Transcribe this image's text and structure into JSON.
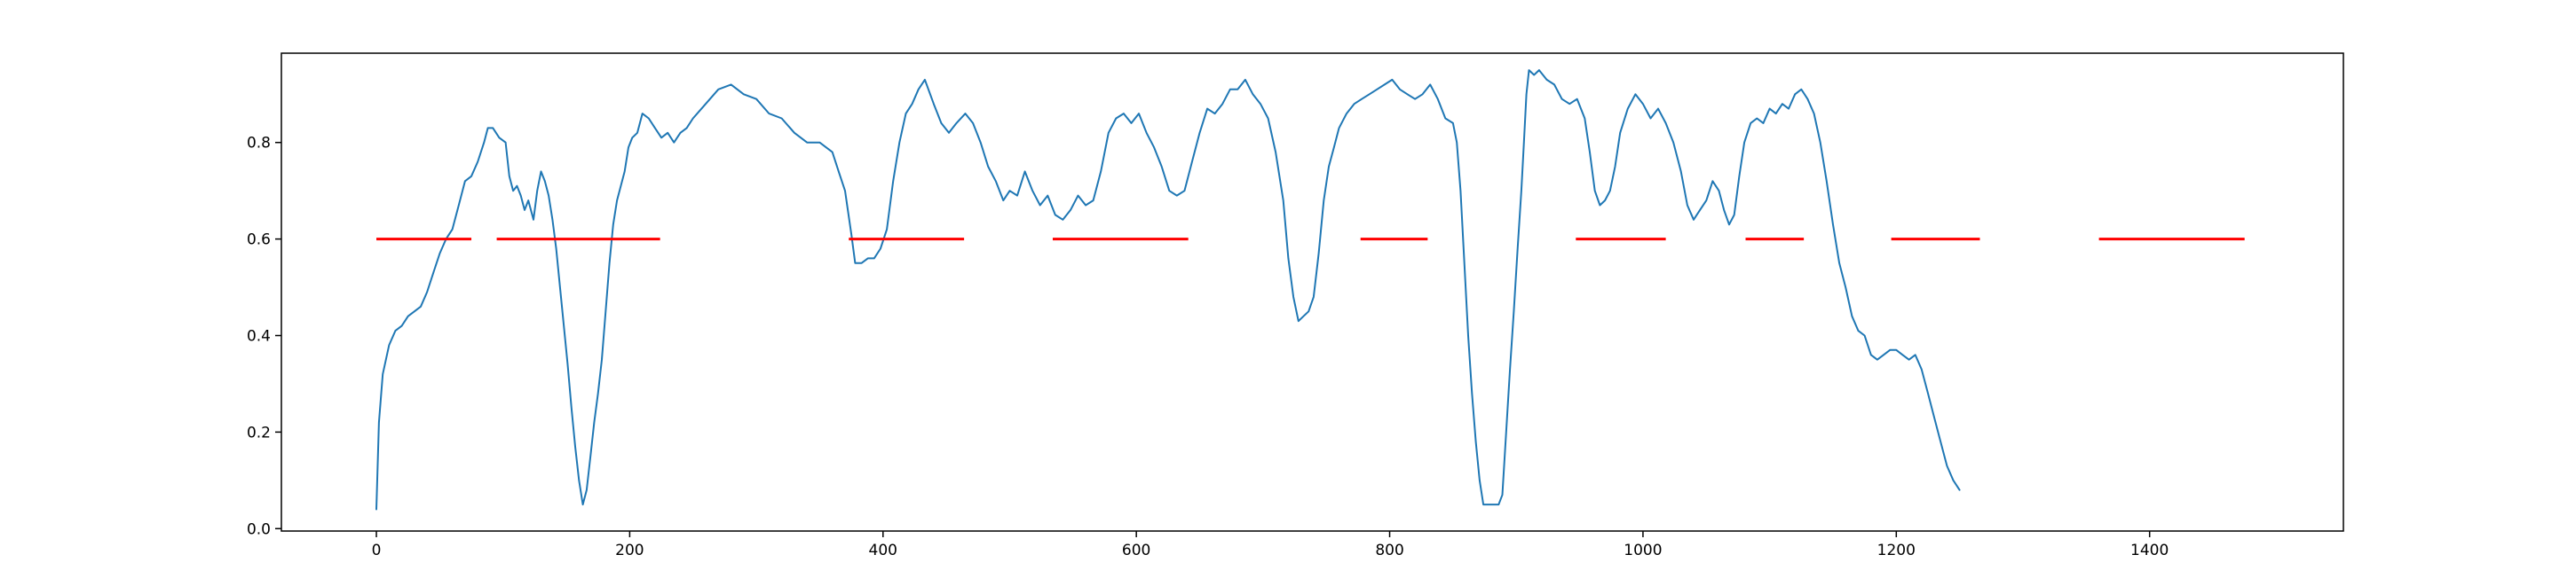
{
  "chart_data": {
    "type": "line",
    "title": "",
    "xlabel": "",
    "ylabel": "",
    "xlim": [
      -75,
      1553
    ],
    "ylim": [
      -0.005,
      0.985
    ],
    "grid": false,
    "legend": "none",
    "xticks": [
      0,
      200,
      400,
      600,
      800,
      1000,
      1200,
      1400
    ],
    "yticks": [
      0.0,
      0.2,
      0.4,
      0.6,
      0.8
    ],
    "xtick_labels": [
      "0",
      "200",
      "400",
      "600",
      "800",
      "1000",
      "1200",
      "1400"
    ],
    "ytick_labels": [
      "0.0",
      "0.2",
      "0.4",
      "0.6",
      "0.8"
    ],
    "colors": {
      "series": "#1f77b4",
      "threshold": "#ff0000",
      "axes": "#000000"
    },
    "series": [
      {
        "color": "#1f77b4",
        "points": [
          [
            0,
            0.04
          ],
          [
            2,
            0.22
          ],
          [
            5,
            0.32
          ],
          [
            10,
            0.38
          ],
          [
            15,
            0.41
          ],
          [
            20,
            0.42
          ],
          [
            25,
            0.44
          ],
          [
            30,
            0.45
          ],
          [
            35,
            0.46
          ],
          [
            40,
            0.49
          ],
          [
            45,
            0.53
          ],
          [
            50,
            0.57
          ],
          [
            55,
            0.6
          ],
          [
            60,
            0.62
          ],
          [
            65,
            0.67
          ],
          [
            70,
            0.72
          ],
          [
            75,
            0.73
          ],
          [
            80,
            0.76
          ],
          [
            85,
            0.8
          ],
          [
            88,
            0.83
          ],
          [
            92,
            0.83
          ],
          [
            97,
            0.81
          ],
          [
            102,
            0.8
          ],
          [
            105,
            0.73
          ],
          [
            108,
            0.7
          ],
          [
            111,
            0.71
          ],
          [
            114,
            0.69
          ],
          [
            117,
            0.66
          ],
          [
            120,
            0.68
          ],
          [
            124,
            0.64
          ],
          [
            127,
            0.7
          ],
          [
            130,
            0.74
          ],
          [
            133,
            0.72
          ],
          [
            136,
            0.69
          ],
          [
            139,
            0.64
          ],
          [
            142,
            0.58
          ],
          [
            145,
            0.5
          ],
          [
            148,
            0.42
          ],
          [
            151,
            0.34
          ],
          [
            154,
            0.25
          ],
          [
            157,
            0.17
          ],
          [
            160,
            0.1
          ],
          [
            163,
            0.05
          ],
          [
            166,
            0.08
          ],
          [
            169,
            0.15
          ],
          [
            172,
            0.22
          ],
          [
            175,
            0.28
          ],
          [
            178,
            0.35
          ],
          [
            181,
            0.45
          ],
          [
            184,
            0.55
          ],
          [
            187,
            0.63
          ],
          [
            190,
            0.68
          ],
          [
            193,
            0.71
          ],
          [
            196,
            0.74
          ],
          [
            199,
            0.79
          ],
          [
            202,
            0.81
          ],
          [
            206,
            0.82
          ],
          [
            210,
            0.86
          ],
          [
            215,
            0.85
          ],
          [
            220,
            0.83
          ],
          [
            225,
            0.81
          ],
          [
            230,
            0.82
          ],
          [
            235,
            0.8
          ],
          [
            240,
            0.82
          ],
          [
            245,
            0.83
          ],
          [
            250,
            0.85
          ],
          [
            260,
            0.88
          ],
          [
            270,
            0.91
          ],
          [
            280,
            0.92
          ],
          [
            290,
            0.9
          ],
          [
            300,
            0.89
          ],
          [
            310,
            0.86
          ],
          [
            320,
            0.85
          ],
          [
            330,
            0.82
          ],
          [
            340,
            0.8
          ],
          [
            350,
            0.8
          ],
          [
            360,
            0.78
          ],
          [
            365,
            0.74
          ],
          [
            370,
            0.7
          ],
          [
            375,
            0.61
          ],
          [
            378,
            0.55
          ],
          [
            383,
            0.55
          ],
          [
            388,
            0.56
          ],
          [
            393,
            0.56
          ],
          [
            398,
            0.58
          ],
          [
            403,
            0.62
          ],
          [
            408,
            0.72
          ],
          [
            413,
            0.8
          ],
          [
            418,
            0.86
          ],
          [
            423,
            0.88
          ],
          [
            428,
            0.91
          ],
          [
            433,
            0.93
          ],
          [
            440,
            0.88
          ],
          [
            446,
            0.84
          ],
          [
            452,
            0.82
          ],
          [
            458,
            0.84
          ],
          [
            465,
            0.86
          ],
          [
            471,
            0.84
          ],
          [
            477,
            0.8
          ],
          [
            483,
            0.75
          ],
          [
            489,
            0.72
          ],
          [
            495,
            0.68
          ],
          [
            500,
            0.7
          ],
          [
            506,
            0.69
          ],
          [
            512,
            0.74
          ],
          [
            518,
            0.7
          ],
          [
            524,
            0.67
          ],
          [
            530,
            0.69
          ],
          [
            536,
            0.65
          ],
          [
            542,
            0.64
          ],
          [
            548,
            0.66
          ],
          [
            554,
            0.69
          ],
          [
            560,
            0.67
          ],
          [
            566,
            0.68
          ],
          [
            572,
            0.74
          ],
          [
            578,
            0.82
          ],
          [
            584,
            0.85
          ],
          [
            590,
            0.86
          ],
          [
            596,
            0.84
          ],
          [
            602,
            0.86
          ],
          [
            608,
            0.82
          ],
          [
            614,
            0.79
          ],
          [
            620,
            0.75
          ],
          [
            626,
            0.7
          ],
          [
            632,
            0.69
          ],
          [
            638,
            0.7
          ],
          [
            644,
            0.76
          ],
          [
            650,
            0.82
          ],
          [
            656,
            0.87
          ],
          [
            662,
            0.86
          ],
          [
            668,
            0.88
          ],
          [
            674,
            0.91
          ],
          [
            680,
            0.91
          ],
          [
            686,
            0.93
          ],
          [
            692,
            0.9
          ],
          [
            698,
            0.88
          ],
          [
            704,
            0.85
          ],
          [
            710,
            0.78
          ],
          [
            716,
            0.68
          ],
          [
            720,
            0.56
          ],
          [
            724,
            0.48
          ],
          [
            728,
            0.43
          ],
          [
            732,
            0.44
          ],
          [
            736,
            0.45
          ],
          [
            740,
            0.48
          ],
          [
            744,
            0.57
          ],
          [
            748,
            0.68
          ],
          [
            752,
            0.75
          ],
          [
            756,
            0.79
          ],
          [
            760,
            0.83
          ],
          [
            766,
            0.86
          ],
          [
            772,
            0.88
          ],
          [
            778,
            0.89
          ],
          [
            784,
            0.9
          ],
          [
            790,
            0.91
          ],
          [
            796,
            0.92
          ],
          [
            802,
            0.93
          ],
          [
            808,
            0.91
          ],
          [
            814,
            0.9
          ],
          [
            820,
            0.89
          ],
          [
            826,
            0.9
          ],
          [
            832,
            0.92
          ],
          [
            838,
            0.89
          ],
          [
            844,
            0.85
          ],
          [
            850,
            0.84
          ],
          [
            853,
            0.8
          ],
          [
            856,
            0.7
          ],
          [
            859,
            0.55
          ],
          [
            862,
            0.4
          ],
          [
            865,
            0.28
          ],
          [
            868,
            0.18
          ],
          [
            871,
            0.1
          ],
          [
            874,
            0.05
          ],
          [
            880,
            0.05
          ],
          [
            886,
            0.05
          ],
          [
            889,
            0.07
          ],
          [
            892,
            0.2
          ],
          [
            895,
            0.33
          ],
          [
            898,
            0.45
          ],
          [
            901,
            0.58
          ],
          [
            904,
            0.7
          ],
          [
            906,
            0.8
          ],
          [
            908,
            0.9
          ],
          [
            910,
            0.95
          ],
          [
            914,
            0.94
          ],
          [
            918,
            0.95
          ],
          [
            924,
            0.93
          ],
          [
            930,
            0.92
          ],
          [
            936,
            0.89
          ],
          [
            942,
            0.88
          ],
          [
            948,
            0.89
          ],
          [
            954,
            0.85
          ],
          [
            958,
            0.78
          ],
          [
            962,
            0.7
          ],
          [
            966,
            0.67
          ],
          [
            970,
            0.68
          ],
          [
            974,
            0.7
          ],
          [
            978,
            0.75
          ],
          [
            982,
            0.82
          ],
          [
            988,
            0.87
          ],
          [
            994,
            0.9
          ],
          [
            1000,
            0.88
          ],
          [
            1006,
            0.85
          ],
          [
            1012,
            0.87
          ],
          [
            1018,
            0.84
          ],
          [
            1024,
            0.8
          ],
          [
            1030,
            0.74
          ],
          [
            1035,
            0.67
          ],
          [
            1040,
            0.64
          ],
          [
            1045,
            0.66
          ],
          [
            1050,
            0.68
          ],
          [
            1055,
            0.72
          ],
          [
            1060,
            0.7
          ],
          [
            1064,
            0.66
          ],
          [
            1068,
            0.63
          ],
          [
            1072,
            0.65
          ],
          [
            1076,
            0.73
          ],
          [
            1080,
            0.8
          ],
          [
            1085,
            0.84
          ],
          [
            1090,
            0.85
          ],
          [
            1095,
            0.84
          ],
          [
            1100,
            0.87
          ],
          [
            1105,
            0.86
          ],
          [
            1110,
            0.88
          ],
          [
            1115,
            0.87
          ],
          [
            1120,
            0.9
          ],
          [
            1125,
            0.91
          ],
          [
            1130,
            0.89
          ],
          [
            1135,
            0.86
          ],
          [
            1140,
            0.8
          ],
          [
            1145,
            0.72
          ],
          [
            1150,
            0.63
          ],
          [
            1155,
            0.55
          ],
          [
            1160,
            0.5
          ],
          [
            1165,
            0.44
          ],
          [
            1170,
            0.41
          ],
          [
            1175,
            0.4
          ],
          [
            1180,
            0.36
          ],
          [
            1185,
            0.35
          ],
          [
            1190,
            0.36
          ],
          [
            1195,
            0.37
          ],
          [
            1200,
            0.37
          ],
          [
            1205,
            0.36
          ],
          [
            1210,
            0.35
          ],
          [
            1215,
            0.36
          ],
          [
            1220,
            0.33
          ],
          [
            1225,
            0.28
          ],
          [
            1230,
            0.23
          ],
          [
            1235,
            0.18
          ],
          [
            1240,
            0.13
          ],
          [
            1245,
            0.1
          ],
          [
            1250,
            0.08
          ]
        ]
      }
    ],
    "threshold_segments": [
      {
        "y": 0.6,
        "x": [
          0,
          75
        ]
      },
      {
        "y": 0.6,
        "x": [
          95,
          224
        ]
      },
      {
        "y": 0.6,
        "x": [
          373,
          464
        ]
      },
      {
        "y": 0.6,
        "x": [
          534,
          641
        ]
      },
      {
        "y": 0.6,
        "x": [
          777,
          830
        ]
      },
      {
        "y": 0.6,
        "x": [
          947,
          1018
        ]
      },
      {
        "y": 0.6,
        "x": [
          1081,
          1127
        ]
      },
      {
        "y": 0.6,
        "x": [
          1196,
          1266
        ]
      },
      {
        "y": 0.6,
        "x": [
          1360,
          1475
        ]
      }
    ]
  }
}
